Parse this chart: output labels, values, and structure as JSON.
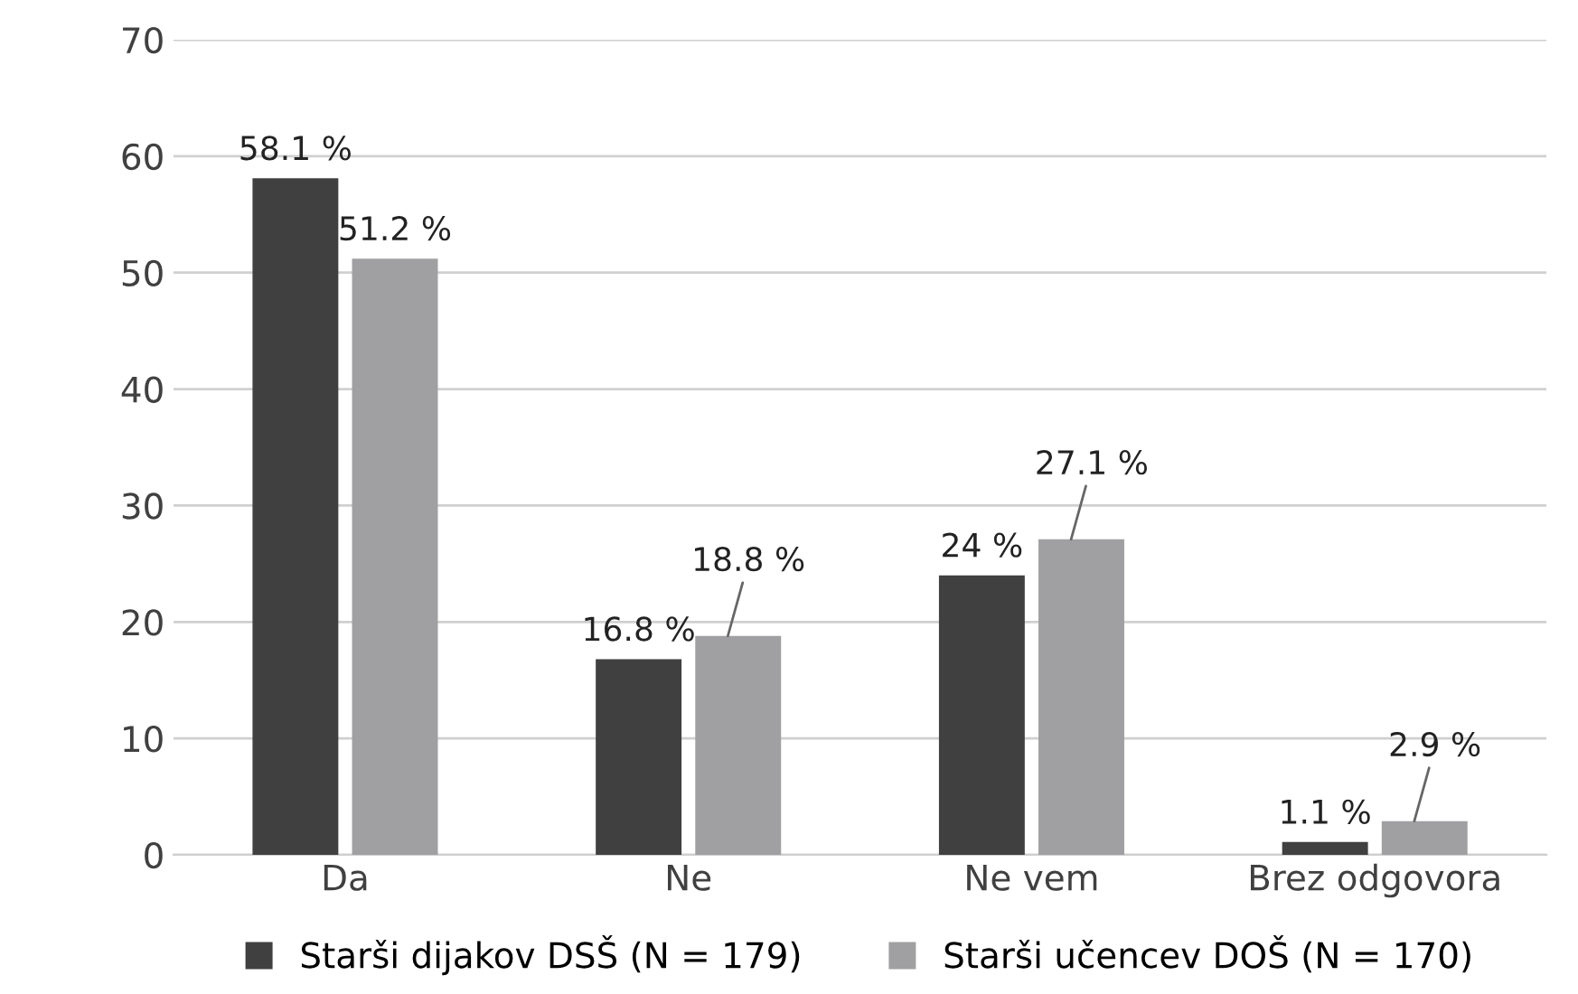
{
  "chart_data": {
    "type": "bar",
    "categories": [
      "Da",
      "Ne",
      "Ne vem",
      "Brez odgovora"
    ],
    "series": [
      {
        "name": "Starši dijakov DSŠ (N = 179)",
        "color": "#404040",
        "values": [
          58.1,
          16.8,
          24,
          1.1
        ],
        "value_labels": [
          "58.1 %",
          "16.8 %",
          "24 %",
          "1.1 %"
        ]
      },
      {
        "name": "Starši učencev DOŠ (N = 170)",
        "color": "#a0a0a2",
        "values": [
          51.2,
          18.8,
          27.1,
          2.9
        ],
        "value_labels": [
          "51.2 %",
          "18.8 %",
          "27.1 %",
          "2.9 %"
        ]
      }
    ],
    "ylim": [
      0,
      70
    ],
    "yticks": [
      0,
      10,
      20,
      30,
      40,
      50,
      60,
      70
    ],
    "grid": "y",
    "legend": "bottom"
  }
}
